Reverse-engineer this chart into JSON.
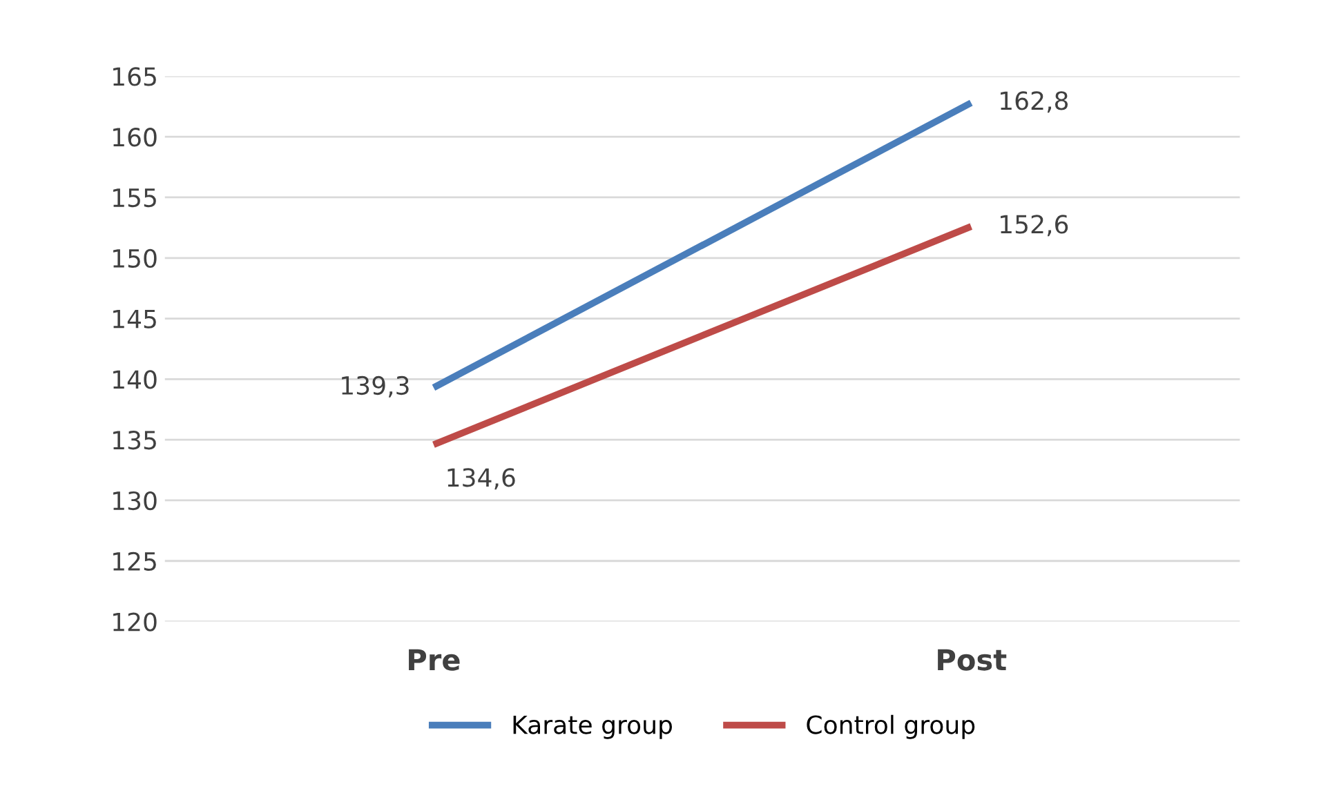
{
  "chart_data": {
    "type": "line",
    "categories": [
      "Pre",
      "Post"
    ],
    "series": [
      {
        "name": "Karate group",
        "color": "#4a7ebb",
        "values": [
          139.3,
          162.8
        ],
        "value_labels": [
          "139,3",
          "162,8"
        ]
      },
      {
        "name": "Control group",
        "color": "#be4b48",
        "values": [
          134.6,
          152.6
        ],
        "value_labels": [
          "134,6",
          "152,6"
        ]
      }
    ],
    "ylim": [
      120,
      165
    ],
    "yticks": [
      120,
      125,
      130,
      135,
      140,
      145,
      150,
      155,
      160,
      165
    ],
    "grid": "y",
    "legend": "bottom",
    "marker": "none",
    "line_style": "solid"
  }
}
